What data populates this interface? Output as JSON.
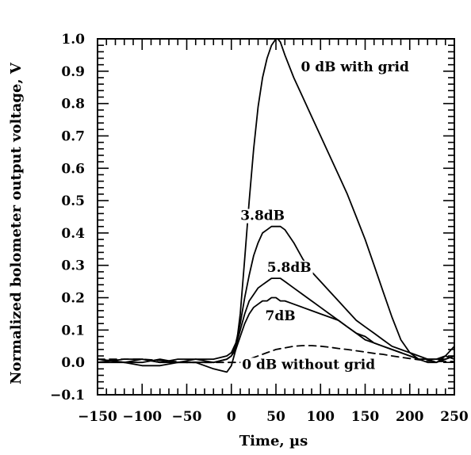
{
  "chart_data": {
    "type": "line",
    "title": "",
    "xlabel": "Time, µs",
    "ylabel": "Normalized bolometer output voltage, V",
    "xlim": [
      -150,
      250
    ],
    "ylim": [
      -0.1,
      1.0
    ],
    "xticks": [
      "−150",
      "−100",
      "−50",
      "0",
      "50",
      "100",
      "150",
      "200",
      "250"
    ],
    "yticks": [
      "1.0",
      "0.9",
      "0.8",
      "0.7",
      "0.6",
      "0.5",
      "0.4",
      "0.3",
      "0.2",
      "0.1",
      "0.0",
      "−0.1"
    ],
    "grid": false,
    "legend": "none",
    "series": [
      {
        "name": "0 dB with grid",
        "style": "solid",
        "x": [
          -150,
          -120,
          -100,
          -80,
          -60,
          -40,
          -20,
          -5,
          0,
          5,
          10,
          15,
          20,
          25,
          30,
          35,
          40,
          45,
          50,
          52,
          55,
          60,
          70,
          80,
          90,
          100,
          110,
          120,
          130,
          140,
          150,
          160,
          170,
          180,
          190,
          200,
          210,
          220,
          230,
          240,
          250
        ],
        "y": [
          0.01,
          0.0,
          -0.01,
          -0.01,
          0.0,
          0.0,
          -0.02,
          -0.03,
          -0.01,
          0.04,
          0.15,
          0.32,
          0.5,
          0.66,
          0.79,
          0.88,
          0.94,
          0.98,
          1.0,
          1.0,
          0.99,
          0.95,
          0.88,
          0.82,
          0.76,
          0.7,
          0.64,
          0.58,
          0.52,
          0.45,
          0.38,
          0.3,
          0.22,
          0.14,
          0.07,
          0.03,
          0.01,
          0.0,
          0.0,
          0.02,
          0.05
        ]
      },
      {
        "name": "3.8dB",
        "style": "solid",
        "x": [
          -150,
          -120,
          -100,
          -80,
          -60,
          -40,
          -20,
          -5,
          0,
          5,
          10,
          15,
          20,
          25,
          30,
          35,
          40,
          45,
          50,
          55,
          60,
          70,
          80,
          90,
          100,
          110,
          120,
          130,
          140,
          150,
          160,
          170,
          180,
          190,
          200,
          210,
          220,
          230,
          240,
          250
        ],
        "y": [
          0.0,
          0.01,
          0.01,
          0.0,
          0.01,
          0.01,
          0.01,
          0.02,
          0.03,
          0.06,
          0.12,
          0.2,
          0.27,
          0.33,
          0.37,
          0.4,
          0.41,
          0.42,
          0.42,
          0.42,
          0.41,
          0.37,
          0.32,
          0.28,
          0.25,
          0.22,
          0.19,
          0.16,
          0.13,
          0.11,
          0.09,
          0.07,
          0.05,
          0.04,
          0.03,
          0.02,
          0.01,
          0.01,
          0.02,
          0.01
        ]
      },
      {
        "name": "5.8dB",
        "style": "solid",
        "x": [
          -150,
          -120,
          -100,
          -80,
          -60,
          -40,
          -20,
          -5,
          0,
          5,
          10,
          15,
          20,
          25,
          30,
          35,
          40,
          45,
          50,
          55,
          60,
          70,
          80,
          90,
          100,
          110,
          120,
          130,
          140,
          150,
          160,
          170,
          180,
          190,
          200,
          210,
          220,
          230,
          240,
          250
        ],
        "y": [
          0.01,
          0.0,
          0.0,
          0.01,
          0.0,
          0.01,
          0.0,
          0.01,
          0.02,
          0.05,
          0.1,
          0.15,
          0.19,
          0.21,
          0.23,
          0.24,
          0.25,
          0.26,
          0.26,
          0.26,
          0.25,
          0.23,
          0.21,
          0.19,
          0.17,
          0.15,
          0.13,
          0.11,
          0.09,
          0.07,
          0.06,
          0.05,
          0.04,
          0.03,
          0.02,
          0.01,
          0.01,
          0.0,
          0.01,
          0.02
        ]
      },
      {
        "name": "7dB",
        "style": "solid",
        "x": [
          -150,
          -120,
          -100,
          -80,
          -60,
          -40,
          -20,
          -5,
          0,
          5,
          10,
          15,
          20,
          25,
          30,
          35,
          40,
          45,
          50,
          55,
          60,
          70,
          80,
          90,
          100,
          110,
          120,
          130,
          140,
          150,
          160,
          170,
          180,
          190,
          200,
          210,
          220,
          230,
          240,
          250
        ],
        "y": [
          0.0,
          0.0,
          0.01,
          0.0,
          0.0,
          0.0,
          0.0,
          0.01,
          0.02,
          0.04,
          0.08,
          0.12,
          0.15,
          0.17,
          0.18,
          0.19,
          0.19,
          0.2,
          0.2,
          0.19,
          0.19,
          0.18,
          0.17,
          0.16,
          0.15,
          0.14,
          0.13,
          0.11,
          0.09,
          0.08,
          0.06,
          0.05,
          0.04,
          0.03,
          0.02,
          0.01,
          0.01,
          0.01,
          0.01,
          0.02
        ]
      },
      {
        "name": "0 dB without grid",
        "style": "dashed",
        "x": [
          -150,
          -100,
          -50,
          -10,
          0,
          10,
          20,
          30,
          40,
          50,
          60,
          70,
          80,
          90,
          100,
          110,
          120,
          130,
          140,
          150,
          160,
          170,
          180,
          190,
          200,
          210,
          220,
          230,
          240,
          250
        ],
        "y": [
          0.01,
          0.01,
          0.0,
          0.0,
          0.0,
          0.0,
          0.01,
          0.02,
          0.03,
          0.04,
          0.045,
          0.05,
          0.052,
          0.052,
          0.05,
          0.047,
          0.043,
          0.04,
          0.036,
          0.032,
          0.028,
          0.025,
          0.02,
          0.016,
          0.012,
          0.008,
          0.005,
          0.003,
          0.003,
          0.003
        ]
      }
    ],
    "annotations": [
      {
        "text": "0 dB with grid",
        "x": 78,
        "y": 0.9,
        "anchor": "start"
      },
      {
        "text": "3.8dB",
        "x": 35,
        "y": 0.44,
        "anchor": "middle"
      },
      {
        "text": "5.8dB",
        "x": 40,
        "y": 0.28,
        "anchor": "start"
      },
      {
        "text": "7dB",
        "x": 38,
        "y": 0.13,
        "anchor": "start"
      },
      {
        "text": "0 dB without grid",
        "x": 12,
        "y": -0.02,
        "anchor": "start"
      }
    ]
  }
}
